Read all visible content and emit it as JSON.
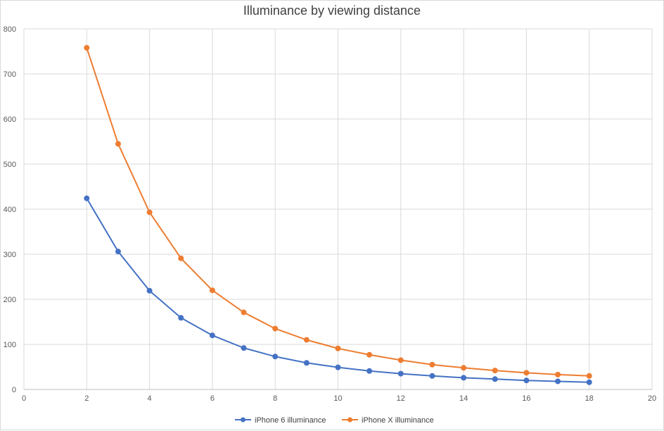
{
  "chart_data": {
    "type": "scatter",
    "title": "Illuminance by viewing distance",
    "xlabel": "",
    "ylabel": "",
    "xlim": [
      0,
      20
    ],
    "ylim": [
      0,
      800
    ],
    "x_ticks": [
      0,
      2,
      4,
      6,
      8,
      10,
      12,
      14,
      16,
      18,
      20
    ],
    "y_ticks": [
      0,
      100,
      200,
      300,
      400,
      500,
      600,
      700,
      800
    ],
    "grid": true,
    "legend_position": "bottom",
    "series": [
      {
        "name": "iPhone 6 illuminance",
        "color": "#4472c4",
        "marker": "circle",
        "points": [
          [
            2,
            424
          ],
          [
            3,
            306
          ],
          [
            4,
            219
          ],
          [
            5,
            159
          ],
          [
            6,
            120
          ],
          [
            7,
            92
          ],
          [
            8,
            73
          ],
          [
            9,
            59
          ],
          [
            10,
            49
          ],
          [
            11,
            41
          ],
          [
            12,
            35
          ],
          [
            13,
            30
          ],
          [
            14,
            26
          ],
          [
            15,
            23
          ],
          [
            16,
            20
          ],
          [
            17,
            18
          ],
          [
            18,
            16
          ]
        ]
      },
      {
        "name": "iPhone X illuminance",
        "color": "#ed7d31",
        "marker": "circle",
        "points": [
          [
            2,
            758
          ],
          [
            3,
            545
          ],
          [
            4,
            393
          ],
          [
            5,
            291
          ],
          [
            6,
            220
          ],
          [
            7,
            171
          ],
          [
            8,
            135
          ],
          [
            9,
            110
          ],
          [
            10,
            91
          ],
          [
            11,
            77
          ],
          [
            12,
            65
          ],
          [
            13,
            55
          ],
          [
            14,
            48
          ],
          [
            15,
            42
          ],
          [
            16,
            37
          ],
          [
            17,
            33
          ],
          [
            18,
            30
          ]
        ]
      }
    ]
  }
}
